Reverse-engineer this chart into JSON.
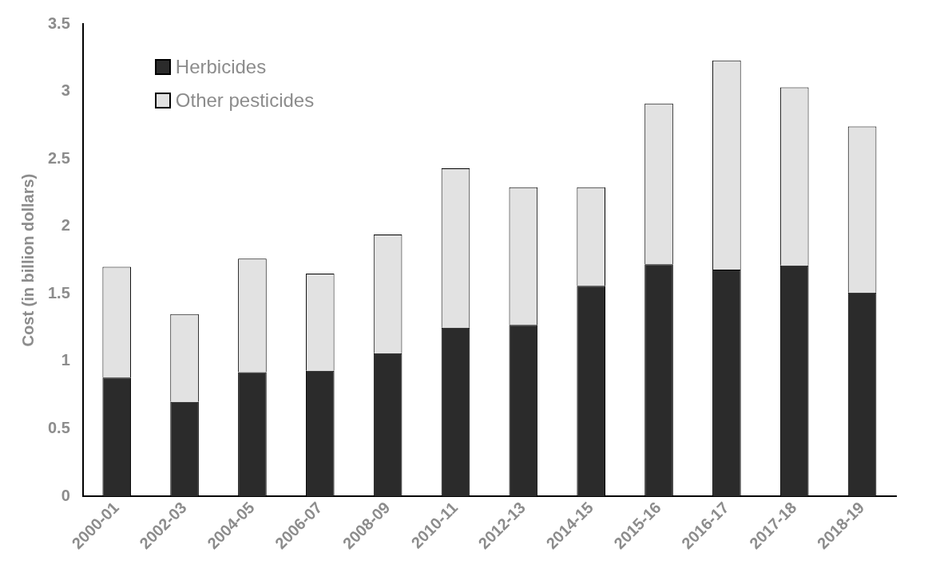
{
  "chart_data": {
    "type": "bar",
    "stacked": true,
    "ylabel": "Cost (in billion dollars)",
    "categories": [
      "2000-01",
      "2002-03",
      "2004-05",
      "2006-07",
      "2008-09",
      "2010-11",
      "2012-13",
      "2014-15",
      "2015-16",
      "2016-17",
      "2017-18",
      "2018-19"
    ],
    "series": [
      {
        "name": "Herbicides",
        "color": "#2b2b2b",
        "values": [
          0.88,
          0.7,
          0.92,
          0.93,
          1.06,
          1.25,
          1.27,
          1.56,
          1.72,
          1.68,
          1.71,
          1.51
        ]
      },
      {
        "name": "Other pesticides",
        "color": "#e2e2e2",
        "values": [
          0.82,
          0.65,
          0.84,
          0.72,
          0.88,
          1.18,
          1.02,
          0.73,
          1.19,
          1.55,
          1.32,
          1.23
        ]
      }
    ],
    "ylim": [
      0,
      3.5
    ],
    "yticks": [
      0,
      0.5,
      1,
      1.5,
      2,
      2.5,
      3,
      3.5
    ],
    "grid": false,
    "legend": "top left"
  }
}
